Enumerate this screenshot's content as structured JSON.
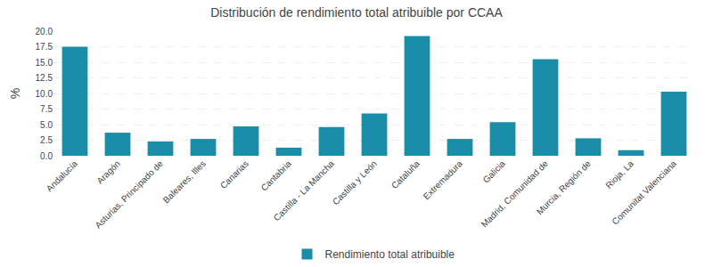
{
  "chart_data": {
    "type": "bar",
    "title": "Distribución de rendimiento total atribuible por CCAA",
    "ylabel": "%",
    "categories": [
      "Andalucía",
      "Aragón",
      "Asturias, Principado de",
      "Baleares, Illes",
      "Canarias",
      "Cantabria",
      "Castilla - La Mancha",
      "Castilla y León",
      "Cataluña",
      "Extremadura",
      "Galicia",
      "Madrid, Comunidad de",
      "Murcia, Región de",
      "Rioja, La",
      "Comunitat Valenciana"
    ],
    "series": [
      {
        "name": "Rendimiento total atribuible",
        "color": "#1a8da8",
        "values": [
          17.5,
          3.7,
          2.3,
          2.7,
          4.7,
          1.3,
          4.6,
          6.8,
          19.2,
          2.7,
          5.4,
          15.5,
          2.8,
          0.9,
          10.3
        ]
      }
    ],
    "ylim": [
      0,
      20.0
    ],
    "yticks": [
      {
        "value": 0,
        "label": "0.0"
      },
      2.5,
      {
        "value": 5,
        "label": "5.0"
      },
      7.5,
      {
        "value": 10,
        "label": "10.0"
      },
      12.5,
      {
        "value": 15,
        "label": "15.0"
      },
      17.5,
      {
        "value": 20,
        "label": "20.0"
      }
    ],
    "grid": true,
    "legend": "bottom"
  }
}
